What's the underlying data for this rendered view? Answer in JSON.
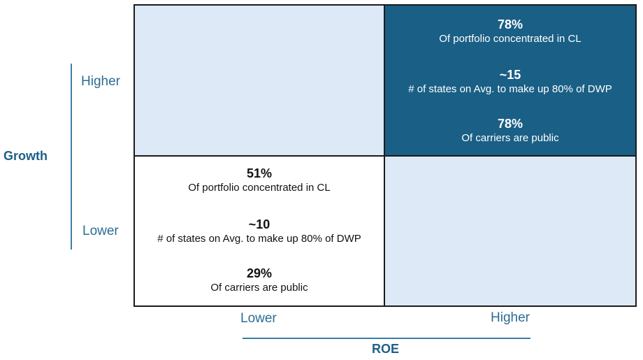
{
  "y_axis": {
    "title": "Growth",
    "higher": "Higher",
    "lower": "Lower"
  },
  "x_axis": {
    "title": "ROE",
    "lower": "Lower",
    "higher": "Higher"
  },
  "quadrants": {
    "top_right": {
      "stats": [
        {
          "value": "78%",
          "desc": "Of portfolio concentrated in CL"
        },
        {
          "value": "~15",
          "desc": "# of states on Avg. to make up 80% of DWP"
        },
        {
          "value": "78%",
          "desc": "Of carriers are public"
        }
      ]
    },
    "bottom_left": {
      "stats": [
        {
          "value": "51%",
          "desc": "Of portfolio concentrated in CL"
        },
        {
          "value": "~10",
          "desc": "# of states on Avg. to make up 80% of DWP"
        },
        {
          "value": "29%",
          "desc": "Of carriers are public"
        }
      ]
    }
  },
  "colors": {
    "dark_quadrant": "#1a5f85",
    "light_quadrant": "#dde9f6",
    "axis_text": "#1f5f86"
  }
}
